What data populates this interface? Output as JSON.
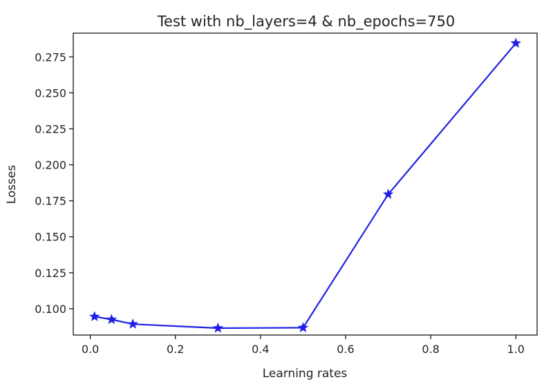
{
  "chart_data": {
    "type": "line",
    "title": "Test with nb_layers=4 & nb_epochs=750",
    "xlabel": "Learning rates",
    "ylabel": "Losses",
    "xlim": [
      -0.04,
      1.05
    ],
    "ylim": [
      0.0817,
      0.2915
    ],
    "xticks": [
      0.0,
      0.2,
      0.4,
      0.6,
      0.8,
      1.0
    ],
    "xtick_labels": [
      "0.0",
      "0.2",
      "0.4",
      "0.6",
      "0.8",
      "1.0"
    ],
    "yticks": [
      0.1,
      0.125,
      0.15,
      0.175,
      0.2,
      0.225,
      0.25,
      0.275
    ],
    "ytick_labels": [
      "0.100",
      "0.125",
      "0.150",
      "0.175",
      "0.200",
      "0.225",
      "0.250",
      "0.275"
    ],
    "grid": false,
    "series": [
      {
        "color": "#1f1fe6",
        "marker": "star",
        "x": [
          0.01,
          0.05,
          0.1,
          0.3,
          0.5,
          0.7,
          1.0
        ],
        "y": [
          0.0945,
          0.0925,
          0.0893,
          0.0865,
          0.0868,
          0.1795,
          0.2845
        ]
      }
    ]
  }
}
